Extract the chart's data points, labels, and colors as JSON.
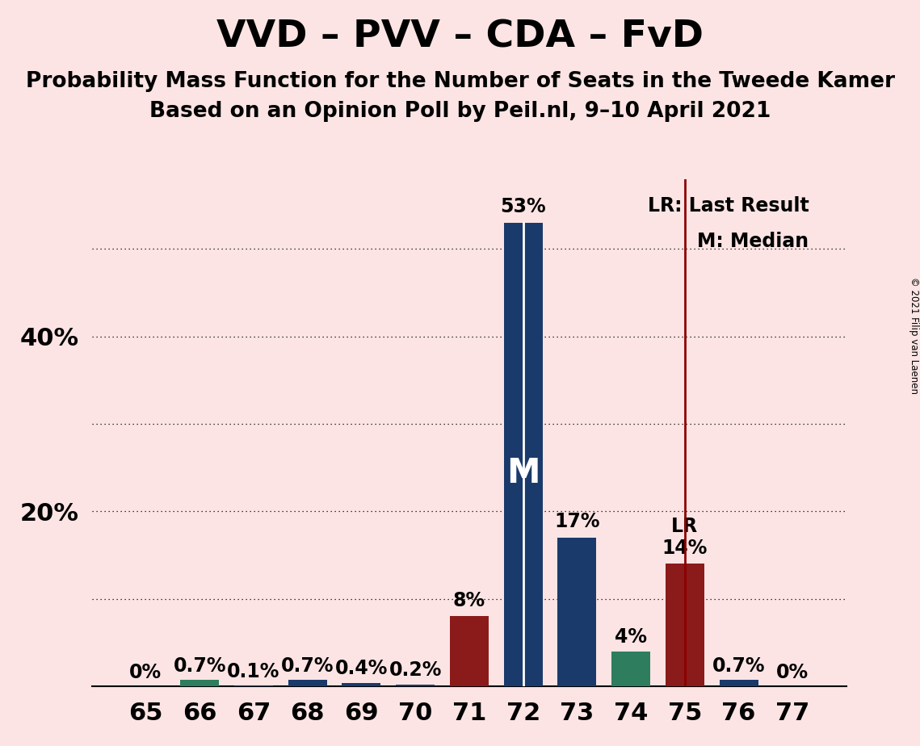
{
  "title": "VVD – PVV – CDA – FvD",
  "subtitle1": "Probability Mass Function for the Number of Seats in the Tweede Kamer",
  "subtitle2": "Based on an Opinion Poll by Peil.nl, 9–10 April 2021",
  "copyright": "© 2021 Filip van Laenen",
  "categories": [
    65,
    66,
    67,
    68,
    69,
    70,
    71,
    72,
    73,
    74,
    75,
    76,
    77
  ],
  "values": [
    0.0,
    0.7,
    0.1,
    0.7,
    0.4,
    0.2,
    8.0,
    53.0,
    17.0,
    4.0,
    14.0,
    0.7,
    0.0
  ],
  "bar_colors": [
    "#1a3a6b",
    "#2e7d5e",
    "#1a3a6b",
    "#1a3a6b",
    "#1a3a6b",
    "#1a3a6b",
    "#8b1a1a",
    "#1a3a6b",
    "#1a3a6b",
    "#2e7d5e",
    "#8b1a1a",
    "#1a3a6b",
    "#1a3a6b"
  ],
  "labels": [
    "0%",
    "0.7%",
    "0.1%",
    "0.7%",
    "0.4%",
    "0.2%",
    "8%",
    "53%",
    "17%",
    "4%",
    "14%",
    "0.7%",
    "0%"
  ],
  "median_seat": 72,
  "last_result_seat": 75,
  "legend_lr": "LR: Last Result",
  "legend_m": "M: Median",
  "background_color": "#fce4e4",
  "bar_width": 0.72,
  "ylim": [
    0,
    58
  ],
  "ytick_positions": [
    20,
    40
  ],
  "ytick_labels": [
    "20%",
    "40%"
  ],
  "grid_yticks": [
    10,
    20,
    30,
    40,
    50
  ],
  "title_fontsize": 34,
  "subtitle_fontsize": 19,
  "label_fontsize": 17,
  "tick_fontsize": 22,
  "legend_fontsize": 17
}
